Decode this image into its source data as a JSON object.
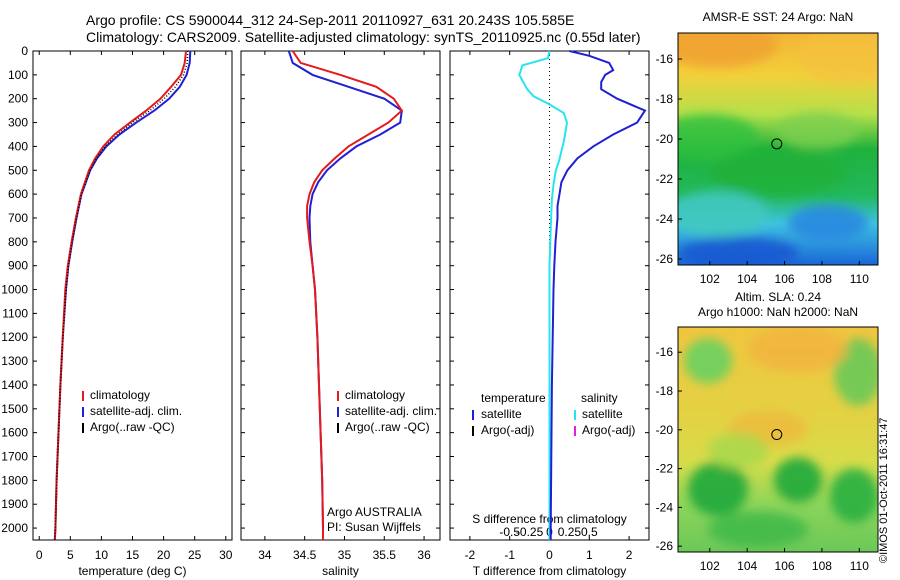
{
  "header": {
    "line1": "Argo profile: CS 5900044_312 24-Sep-2011 20110927_631 20.243S 105.585E",
    "line2": "Climatology: CARS2009. Satellite-adjusted climatology: synTS_20110925.nc (0.55d later)"
  },
  "stamp": "©IMOS 01-Oct-2011 16:31:47",
  "colors": {
    "clim": "#e41a1c",
    "sat": "#1f1fd6",
    "argo": "#000000",
    "sal_sat": "#28e4f0",
    "sal_argo": "#e020e0"
  },
  "chart_data": [
    {
      "type": "line",
      "ylim": [
        2050,
        0
      ],
      "xlim": [
        -1,
        31
      ],
      "xlabel": "temperature (deg C)",
      "xticks": [
        0,
        5,
        10,
        15,
        20,
        25,
        30
      ],
      "yticks": [
        0,
        100,
        200,
        300,
        400,
        500,
        600,
        700,
        800,
        900,
        1000,
        1100,
        1200,
        1300,
        1400,
        1500,
        1600,
        1700,
        1800,
        1900,
        2000
      ],
      "legend": [
        "climatology",
        "satellite-adj. clim.",
        "Argo(..raw -QC)"
      ],
      "series": [
        {
          "name": "climatology",
          "depth": [
            0,
            50,
            100,
            150,
            200,
            250,
            300,
            350,
            400,
            450,
            500,
            600,
            700,
            800,
            900,
            1000,
            1200,
            1400,
            1600,
            1800,
            2000,
            2050
          ],
          "values": [
            23.6,
            23.4,
            22.8,
            21.2,
            19.5,
            17.2,
            14.6,
            12.1,
            10.3,
            9.0,
            8.0,
            6.7,
            5.9,
            5.2,
            4.6,
            4.2,
            3.8,
            3.4,
            3.1,
            2.8,
            2.6,
            2.5
          ]
        },
        {
          "name": "satellite-adj. clim.",
          "depth": [
            0,
            50,
            100,
            150,
            200,
            250,
            300,
            350,
            400,
            450,
            500,
            600,
            700,
            800,
            900,
            1000,
            1200,
            1400,
            1600,
            1800,
            2000,
            2050
          ],
          "values": [
            24.3,
            24.2,
            23.7,
            22.6,
            20.9,
            18.5,
            15.6,
            12.9,
            10.8,
            9.3,
            8.2,
            6.8,
            6.0,
            5.3,
            4.7,
            4.3,
            3.8,
            3.4,
            3.1,
            2.8,
            2.6,
            2.5
          ]
        },
        {
          "name": "Argo(..raw -QC)",
          "depth": [
            0,
            50,
            100,
            150,
            200,
            250,
            300,
            350,
            400,
            450,
            500,
            600,
            700,
            800,
            900,
            1000,
            1200,
            1400,
            1600,
            1800,
            2000,
            2050
          ],
          "values": [
            23.9,
            23.8,
            23.2,
            21.9,
            20.1,
            17.8,
            15.0,
            12.6,
            10.6,
            9.2,
            8.2,
            6.8,
            6.0,
            5.3,
            4.7,
            4.3,
            3.8,
            3.4,
            3.1,
            2.8,
            2.6,
            2.5
          ]
        }
      ]
    },
    {
      "type": "line",
      "ylim": [
        2050,
        0
      ],
      "xlim": [
        33.7,
        36.2
      ],
      "xlabel": "salinity",
      "xticks": [
        34,
        34.5,
        35,
        35.5,
        36
      ],
      "legend": [
        "climatology",
        "satellite-adj. clim.",
        "Argo(..raw -QC)"
      ],
      "annotation": [
        "Argo AUSTRALIA",
        "PI: Susan Wijffels"
      ],
      "series": [
        {
          "name": "climatology",
          "depth": [
            0,
            50,
            100,
            150,
            200,
            250,
            300,
            350,
            400,
            450,
            500,
            550,
            600,
            650,
            700,
            800,
            900,
            1000,
            1200,
            1400,
            1600,
            1800,
            2000,
            2050
          ],
          "values": [
            34.35,
            34.45,
            34.95,
            35.4,
            35.62,
            35.72,
            35.55,
            35.3,
            35.05,
            34.88,
            34.72,
            34.62,
            34.56,
            34.53,
            34.53,
            34.56,
            34.6,
            34.63,
            34.66,
            34.68,
            34.7,
            34.72,
            34.73,
            34.73
          ]
        },
        {
          "name": "satellite-adj. clim.",
          "depth": [
            0,
            50,
            100,
            150,
            200,
            250,
            300,
            350,
            400,
            450,
            500,
            550,
            600,
            650,
            700,
            800,
            900,
            1000,
            1200,
            1400,
            1600,
            1800,
            2000,
            2050
          ],
          "values": [
            34.3,
            34.35,
            34.6,
            35.05,
            35.5,
            35.72,
            35.7,
            35.45,
            35.15,
            34.95,
            34.78,
            34.67,
            34.6,
            34.57,
            34.56,
            34.57,
            34.6,
            34.63,
            34.66,
            34.68,
            34.7,
            34.72,
            34.73,
            34.73
          ]
        }
      ]
    },
    {
      "type": "line",
      "ylim": [
        2050,
        0
      ],
      "xlim": [
        -2.5,
        2.5
      ],
      "xlabel": "T difference from climatology",
      "xticks": [
        -2,
        -1,
        0,
        1,
        2
      ],
      "x2label": "S difference from climatology",
      "x2ticks": [
        -0.5,
        -0.25,
        0,
        0.25,
        0.5
      ],
      "legend_left": [
        "temperature",
        "satellite",
        "Argo(-adj)"
      ],
      "legend_right": [
        "salinity",
        "satellite",
        "Argo(-adj)"
      ],
      "series": [
        {
          "name": "satellite",
          "depth": [
            0,
            20,
            50,
            80,
            100,
            130,
            160,
            200,
            250,
            300,
            350,
            400,
            450,
            500,
            550,
            600,
            650,
            700,
            800,
            900,
            1000,
            1200,
            1400,
            1600,
            1800,
            2000,
            2050
          ],
          "values": [
            0.5,
            1.0,
            1.5,
            1.6,
            1.4,
            1.3,
            1.3,
            1.7,
            2.4,
            2.2,
            1.6,
            1.1,
            0.7,
            0.45,
            0.3,
            0.25,
            0.2,
            0.2,
            0.15,
            0.12,
            0.1,
            0.08,
            0.06,
            0.05,
            0.04,
            0.03,
            0.03
          ]
        },
        {
          "name": "satellite",
          "depth": [
            0,
            30,
            60,
            100,
            130,
            160,
            190,
            220,
            260,
            300,
            340,
            380,
            420,
            460,
            500,
            560,
            620,
            700,
            800,
            900,
            1000,
            1200,
            1400,
            1600,
            1800,
            2000,
            2050
          ],
          "values": [
            0,
            -0.02,
            -0.34,
            -0.38,
            -0.33,
            -0.28,
            -0.2,
            -0.02,
            0.18,
            0.22,
            0.2,
            0.18,
            0.15,
            0.12,
            0.08,
            0.05,
            0.03,
            0.02,
            0.01,
            0.0,
            0.0,
            0.0,
            0.0,
            0.0,
            0.0,
            0.0,
            0.0
          ]
        }
      ]
    },
    {
      "type": "heatmap",
      "title": "AMSR-E SST: 24 Argo: NaN",
      "xticks": [
        102,
        104,
        106,
        108,
        110
      ],
      "yticks": [
        -16,
        -18,
        -20,
        -22,
        -24,
        -26
      ],
      "xlim": [
        100.3,
        111.0
      ],
      "ylim": [
        -26.3,
        -14.7
      ],
      "marker": [
        105.585,
        -20.243
      ]
    },
    {
      "type": "heatmap",
      "title": "Altim. SLA: 0.24",
      "subtitle": "Argo h1000: NaN h2000: NaN",
      "xticks": [
        102,
        104,
        106,
        108,
        110
      ],
      "yticks": [
        -16,
        -18,
        -20,
        -22,
        -24,
        -26
      ],
      "xlim": [
        100.3,
        111.0
      ],
      "ylim": [
        -26.3,
        -14.7
      ],
      "marker": [
        105.585,
        -20.243
      ]
    }
  ]
}
